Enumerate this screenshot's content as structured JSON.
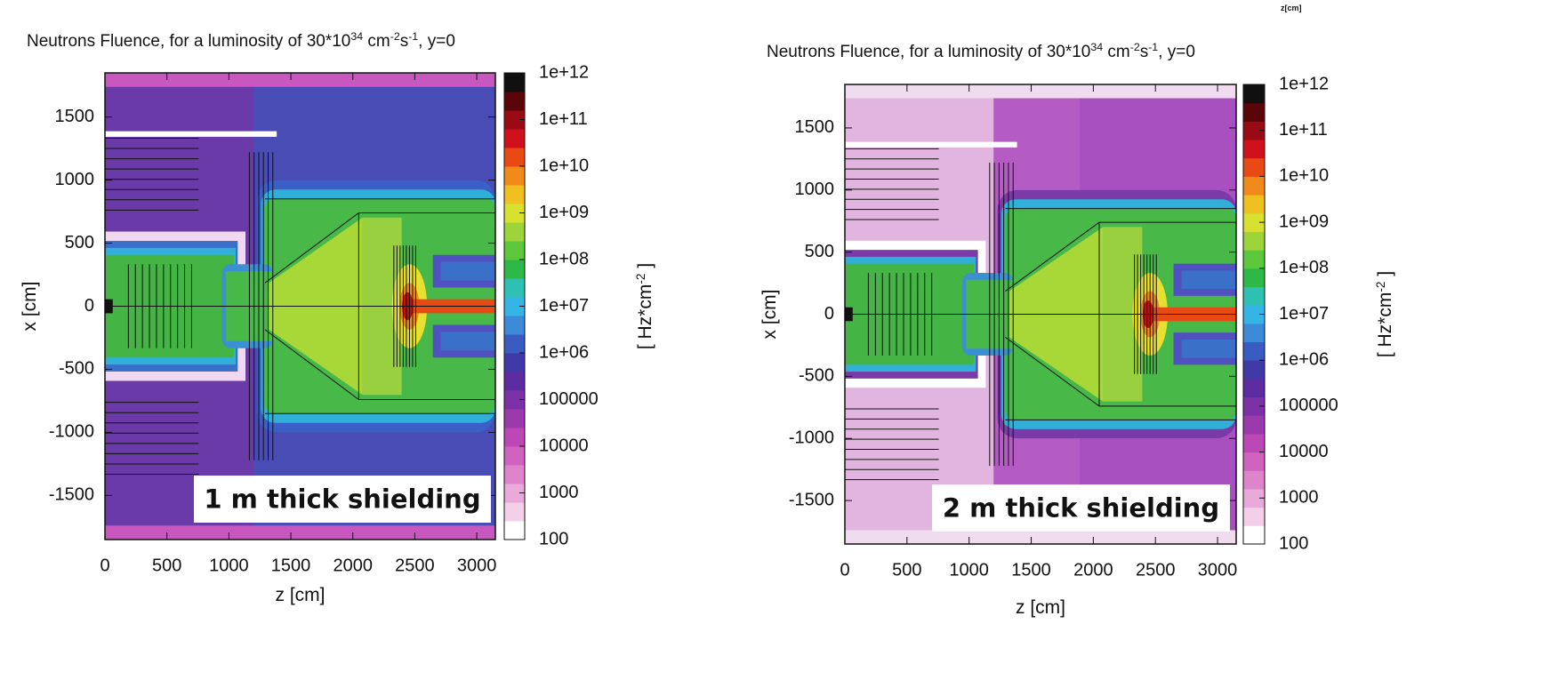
{
  "chart_data": [
    {
      "type": "heatmap",
      "title": [
        "Neutrons Fluence, for a luminosity of 30*10",
        "34",
        " cm",
        "-2",
        "s",
        "-1",
        ", y=0"
      ],
      "xlabel": "z [cm]",
      "ylabel": "x [cm]",
      "xlim": [
        0,
        3150
      ],
      "xticks": [
        0,
        500,
        1000,
        1500,
        2000,
        2500,
        3000
      ],
      "ylim": [
        -1850,
        1850
      ],
      "yticks": [
        -1500,
        -1000,
        -500,
        0,
        500,
        1000,
        1500
      ],
      "colorbar": {
        "label": [
          "[ Hz*cm",
          "-2",
          " ]"
        ],
        "log": true,
        "lim": [
          100,
          1000000000000.0
        ],
        "ticks": [
          100,
          1000,
          10000,
          100000,
          {
            "value": 1000000.0,
            "label": "1e+06"
          },
          {
            "value": 10000000.0,
            "label": "1e+07"
          },
          {
            "value": 100000000.0,
            "label": "1e+08"
          },
          {
            "value": 1000000000.0,
            "label": "1e+09"
          },
          {
            "value": 10000000000.0,
            "label": "1e+10"
          },
          {
            "value": 100000000000.0,
            "label": "1e+11"
          },
          {
            "value": 1000000000000.0,
            "label": "1e+12"
          }
        ],
        "colors": [
          "#ffffff",
          "#f3cfe8",
          "#e9a9d9",
          "#de84cb",
          "#d062c0",
          "#bb48b4",
          "#9a3aac",
          "#7c32a6",
          "#5c2ca0",
          "#3f3aa8",
          "#3a5cc0",
          "#3c8ad8",
          "#35b4e6",
          "#2ec0b0",
          "#2eb848",
          "#5ec83c",
          "#9cd43a",
          "#d8e030",
          "#f0c020",
          "#f08a1a",
          "#e84a14",
          "#d0101a",
          "#9a0a14",
          "#5a0508",
          "#101010"
        ]
      },
      "annotation": "1 m thick shielding"
    },
    {
      "type": "heatmap",
      "title": [
        "Neutrons Fluence, for a luminosity of 30*10",
        "34",
        " cm",
        "-2",
        "s",
        "-1",
        ", y=0"
      ],
      "xlabel": "z [cm]",
      "ylabel": "x [cm]",
      "xlim": [
        0,
        3150
      ],
      "xticks": [
        0,
        500,
        1000,
        1500,
        2000,
        2500,
        3000
      ],
      "ylim": [
        -1850,
        1850
      ],
      "yticks": [
        -1500,
        -1000,
        -500,
        0,
        500,
        1000,
        1500
      ],
      "colorbar": {
        "label": [
          "[ Hz*cm",
          "-2",
          " ]"
        ],
        "log": true,
        "lim": [
          100,
          1000000000000.0
        ],
        "ticks": [
          100,
          1000,
          10000,
          100000,
          {
            "value": 1000000.0,
            "label": "1e+06"
          },
          {
            "value": 10000000.0,
            "label": "1e+07"
          },
          {
            "value": 100000000.0,
            "label": "1e+08"
          },
          {
            "value": 1000000000.0,
            "label": "1e+09"
          },
          {
            "value": 10000000000.0,
            "label": "1e+10"
          },
          {
            "value": 100000000000.0,
            "label": "1e+11"
          },
          {
            "value": 1000000000000.0,
            "label": "1e+12"
          }
        ],
        "colors": [
          "#ffffff",
          "#f3cfe8",
          "#e9a9d9",
          "#de84cb",
          "#d062c0",
          "#bb48b4",
          "#9a3aac",
          "#7c32a6",
          "#5c2ca0",
          "#3f3aa8",
          "#3a5cc0",
          "#3c8ad8",
          "#35b4e6",
          "#2ec0b0",
          "#2eb848",
          "#5ec83c",
          "#9cd43a",
          "#d8e030",
          "#f0c020",
          "#f08a1a",
          "#e84a14",
          "#d0101a",
          "#9a0a14",
          "#5a0508",
          "#101010"
        ]
      },
      "annotation": "2 m thick shielding",
      "corner_text": "z[cm]"
    }
  ]
}
